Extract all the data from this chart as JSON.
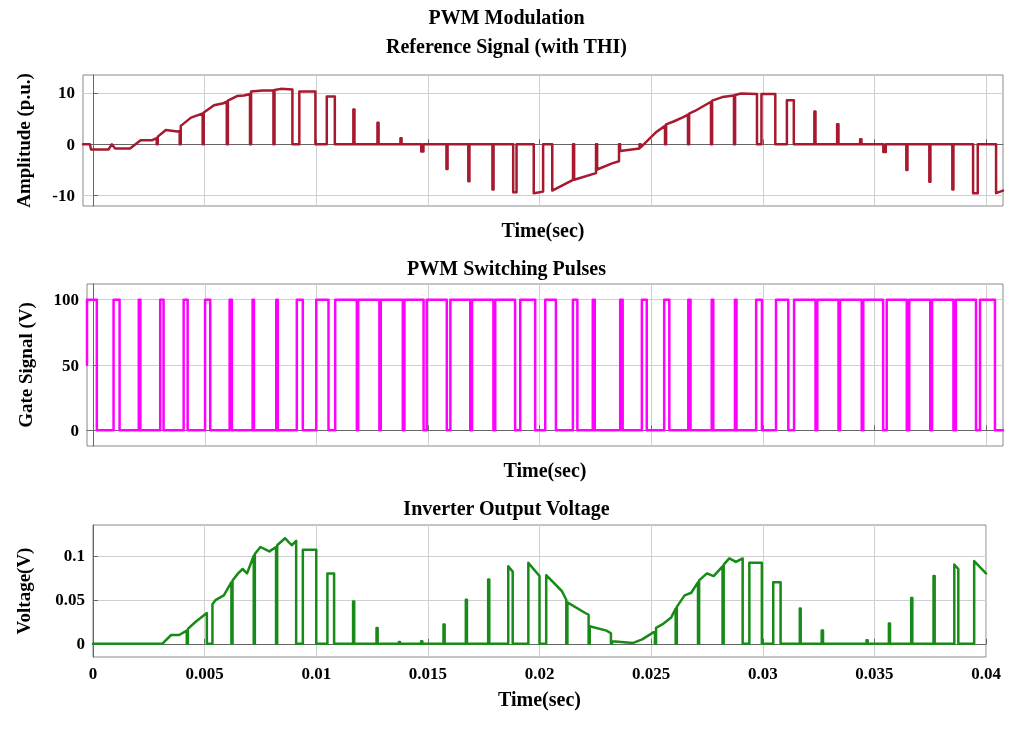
{
  "chart_data": [
    {
      "type": "line",
      "title": "PWM Modulation",
      "subtitle": "Reference Signal (with THI)",
      "xlabel": "Time(sec)",
      "ylabel": "Amplitude (p.u.)",
      "color": "#a6192e",
      "marker": "none",
      "grid": true,
      "tick_labels": "y",
      "xlim": [
        -0.00045,
        0.04076
      ],
      "xticks": [
        0,
        0.005,
        0.01,
        0.015,
        0.02,
        0.025,
        0.03,
        0.035,
        0.04
      ],
      "ylim": [
        -12,
        13.5
      ],
      "yticks": [
        -10,
        0,
        10
      ],
      "x": [
        -0.00045,
        -0.00014,
        -9e-05,
        0.00069,
        0.00084,
        0.00099,
        0.00166,
        0.00213,
        0.00264,
        0.00275,
        0.00285,
        0.00285,
        0.0029,
        0.0029,
        0.00326,
        0.00378,
        0.00388,
        0.00388,
        0.00393,
        0.00393,
        0.00439,
        0.0047,
        0.00491,
        0.00491,
        0.00496,
        0.00496,
        0.00542,
        0.00584,
        0.00599,
        0.00599,
        0.00604,
        0.00604,
        0.00645,
        0.00676,
        0.00703,
        0.00703,
        0.00708,
        0.00708,
        0.00759,
        0.00808,
        0.00808,
        0.00813,
        0.00813,
        0.00841,
        0.00893,
        0.00893,
        0.00924,
        0.00924,
        0.00996,
        0.00996,
        0.01047,
        0.01047,
        0.01083,
        0.01083,
        0.01166,
        0.01166,
        0.01171,
        0.01171,
        0.01274,
        0.01274,
        0.01279,
        0.01279,
        0.01377,
        0.01377,
        0.01382,
        0.01382,
        0.0147,
        0.0147,
        0.0148,
        0.0148,
        0.01583,
        0.01583,
        0.01588,
        0.01588,
        0.01681,
        0.01681,
        0.01686,
        0.01686,
        0.01789,
        0.01789,
        0.01794,
        0.01794,
        0.01882,
        0.01882,
        0.01897,
        0.01897,
        0.01974,
        0.01974,
        0.02016,
        0.02016,
        0.02057,
        0.02057,
        0.0215,
        0.0215,
        0.02155,
        0.02155,
        0.02253,
        0.02253,
        0.02258,
        0.02258,
        0.02325,
        0.02356,
        0.02356,
        0.02361,
        0.02361,
        0.02448,
        0.02448,
        0.02453,
        0.02453,
        0.0252,
        0.02562,
        0.02562,
        0.02567,
        0.02567,
        0.02603,
        0.02644,
        0.02665,
        0.02665,
        0.0267,
        0.0267,
        0.02696,
        0.02768,
        0.02768,
        0.02773,
        0.02773,
        0.02819,
        0.02871,
        0.02871,
        0.02876,
        0.02876,
        0.02902,
        0.02974,
        0.02974,
        0.02994,
        0.02994,
        0.03056,
        0.03056,
        0.03108,
        0.03108,
        0.03139,
        0.03139,
        0.03231,
        0.03231,
        0.03236,
        0.03236,
        0.03333,
        0.03333,
        0.03339,
        0.03339,
        0.03436,
        0.03436,
        0.03442,
        0.03442,
        0.0354,
        0.0354,
        0.03551,
        0.03551,
        0.03643,
        0.03643,
        0.03648,
        0.03648,
        0.03746,
        0.03746,
        0.03751,
        0.03751,
        0.03849,
        0.03849,
        0.03854,
        0.03854,
        0.03942,
        0.03942,
        0.03963,
        0.03963,
        0.04045,
        0.04045,
        0.04076
      ],
      "values": [
        0,
        0,
        -1,
        -1,
        0,
        -0.8,
        -0.8,
        0.8,
        0.8,
        1,
        1.2,
        0,
        0,
        1.5,
        2.8,
        2.5,
        2.6,
        0,
        0,
        3.6,
        5.2,
        5.7,
        6,
        0,
        0,
        6.2,
        7.6,
        8,
        8.3,
        0,
        0,
        8.5,
        9.4,
        9.5,
        9.8,
        0,
        0,
        10.3,
        10.5,
        10.5,
        0,
        0,
        10.6,
        10.8,
        10.7,
        0,
        0,
        10.3,
        10.3,
        0,
        0,
        9.3,
        9.3,
        0,
        0,
        6.8,
        6.8,
        0,
        0,
        4.2,
        4.2,
        0,
        0,
        1.2,
        1.2,
        0,
        0,
        -1.4,
        -1.4,
        0,
        0,
        -4.8,
        -4.8,
        0,
        0,
        -7.2,
        -7.2,
        0,
        0,
        -8.8,
        -8.8,
        0,
        0,
        -9.3,
        -9.3,
        0,
        0,
        -9.5,
        -9.2,
        0,
        0,
        -9,
        -6.9,
        0,
        0,
        -6.9,
        -5.6,
        0,
        0,
        -4.9,
        -3.7,
        -3.3,
        0,
        0,
        -1.3,
        -0.8,
        0,
        0,
        -0.6,
        2.3,
        3.6,
        0,
        0,
        3.9,
        4.5,
        5.3,
        5.8,
        0,
        0,
        6,
        6.5,
        8.3,
        0,
        0,
        8.5,
        9.2,
        9.5,
        0,
        0,
        9.6,
        9.9,
        9.8,
        0,
        0,
        9.8,
        9.8,
        0,
        0,
        8.6,
        8.6,
        0,
        0,
        6.4,
        6.4,
        0,
        0,
        3.9,
        3.9,
        0,
        0,
        1,
        1,
        0,
        0,
        -1.5,
        -1.5,
        0,
        0,
        -5,
        -5,
        0,
        0,
        -7.3,
        -7.3,
        0,
        0,
        -8.8,
        -8.8,
        0,
        0,
        -9.5,
        -9.5,
        0,
        0,
        -9.5,
        -9
      ]
    },
    {
      "type": "line",
      "title": "PWM Switching Pulses",
      "xlabel": "Time(sec)",
      "ylabel": "Gate Signal (V)",
      "color": "#ff00ff",
      "marker": "none",
      "grid": true,
      "tick_labels": "y",
      "xlim": [
        -0.00028,
        0.04076
      ],
      "xticks": [
        0,
        0.005,
        0.01,
        0.015,
        0.02,
        0.025,
        0.03,
        0.035,
        0.04
      ],
      "ylim": [
        -12,
        112
      ],
      "yticks": [
        0,
        50,
        100
      ],
      "x": [
        -0.00028,
        -0.00028,
        0.00016,
        0.00016,
        0.00091,
        0.00091,
        0.00118,
        0.00118,
        0.00204,
        0.00204,
        0.00211,
        0.00211,
        0.003,
        0.003,
        0.00315,
        0.00315,
        0.00405,
        0.00405,
        0.00423,
        0.00423,
        0.00501,
        0.00501,
        0.00524,
        0.00524,
        0.00611,
        0.00611,
        0.00621,
        0.00621,
        0.00714,
        0.00714,
        0.0072,
        0.0072,
        0.0082,
        0.0082,
        0.00827,
        0.00827,
        0.00912,
        0.00912,
        0.00939,
        0.00939,
        0.00999,
        0.00999,
        0.01054,
        0.01054,
        0.01084,
        0.01084,
        0.01181,
        0.01181,
        0.01187,
        0.01187,
        0.01282,
        0.01282,
        0.01288,
        0.01288,
        0.01387,
        0.01387,
        0.01394,
        0.01394,
        0.0148,
        0.0148,
        0.01494,
        0.01494,
        0.01584,
        0.01584,
        0.016,
        0.016,
        0.01689,
        0.01689,
        0.01697,
        0.01697,
        0.01793,
        0.01793,
        0.01801,
        0.01801,
        0.0189,
        0.0189,
        0.01913,
        0.01913,
        0.0198,
        0.0198,
        0.02025,
        0.02025,
        0.02073,
        0.02073,
        0.02149,
        0.02149,
        0.02169,
        0.02169,
        0.02238,
        0.02238,
        0.02247,
        0.02247,
        0.02361,
        0.02361,
        0.02372,
        0.02372,
        0.02458,
        0.02458,
        0.0248,
        0.0248,
        0.02558,
        0.02558,
        0.02581,
        0.02581,
        0.02666,
        0.02666,
        0.02676,
        0.02676,
        0.02771,
        0.02771,
        0.02778,
        0.02778,
        0.02875,
        0.02875,
        0.02882,
        0.02882,
        0.0297,
        0.0297,
        0.02996,
        0.02996,
        0.03059,
        0.03059,
        0.03114,
        0.03114,
        0.0314,
        0.0314,
        0.03236,
        0.03236,
        0.03244,
        0.03244,
        0.03339,
        0.03339,
        0.03346,
        0.03346,
        0.03443,
        0.03443,
        0.0345,
        0.0345,
        0.03539,
        0.03539,
        0.03555,
        0.03555,
        0.03645,
        0.03645,
        0.03656,
        0.03656,
        0.0375,
        0.0375,
        0.03758,
        0.03758,
        0.03854,
        0.03854,
        0.03865,
        0.03865,
        0.03955,
        0.03955,
        0.03973,
        0.03973,
        0.0404,
        0.0404,
        0.04076
      ],
      "values": [
        50,
        100,
        100,
        0,
        0,
        100,
        100,
        0,
        0,
        100,
        100,
        0,
        0,
        100,
        100,
        0,
        0,
        100,
        100,
        0,
        0,
        100,
        100,
        0,
        0,
        100,
        100,
        0,
        0,
        100,
        100,
        0,
        0,
        100,
        100,
        0,
        0,
        100,
        100,
        0,
        0,
        100,
        100,
        0,
        0,
        100,
        100,
        0,
        0,
        100,
        100,
        0,
        0,
        100,
        100,
        0,
        0,
        100,
        100,
        0,
        0,
        100,
        100,
        0,
        0,
        100,
        100,
        0,
        0,
        100,
        100,
        0,
        0,
        100,
        100,
        0,
        0,
        100,
        100,
        0,
        0,
        100,
        100,
        0,
        0,
        100,
        100,
        0,
        0,
        100,
        100,
        0,
        0,
        100,
        100,
        0,
        0,
        100,
        100,
        0,
        0,
        100,
        100,
        0,
        0,
        100,
        100,
        0,
        0,
        100,
        100,
        0,
        0,
        100,
        100,
        0,
        0,
        100,
        100,
        0,
        0,
        100,
        100,
        0,
        0,
        100,
        100,
        0,
        0,
        100,
        100,
        0,
        0,
        100,
        100,
        0,
        0,
        100,
        100,
        0,
        0,
        100,
        100,
        0,
        0,
        100,
        100,
        0,
        0,
        100,
        100,
        0,
        0,
        100,
        100,
        0,
        0,
        100,
        100,
        0,
        0
      ]
    },
    {
      "type": "line",
      "title": "Inverter Output Voltage",
      "xlabel": "Time(sec)",
      "ylabel": "Voltage(V)",
      "color": "#178a17",
      "marker": "none",
      "grid": true,
      "xlim": [
        0,
        0.04
      ],
      "xticks": [
        0,
        0.005,
        0.01,
        0.015,
        0.02,
        0.025,
        0.03,
        0.035,
        0.04
      ],
      "ylim": [
        -0.015,
        0.135
      ],
      "yticks": [
        0,
        0.05,
        0.1
      ],
      "x": [
        0,
        0.0031,
        0.0035,
        0.00386,
        0.0042,
        0.0042,
        0.00425,
        0.00425,
        0.0046,
        0.0051,
        0.0051,
        0.00535,
        0.00535,
        0.0055,
        0.00586,
        0.0062,
        0.0062,
        0.00625,
        0.00625,
        0.0065,
        0.0067,
        0.0069,
        0.0072,
        0.0072,
        0.00725,
        0.00725,
        0.0075,
        0.0079,
        0.0082,
        0.0082,
        0.00825,
        0.00825,
        0.0086,
        0.0089,
        0.0091,
        0.0091,
        0.0094,
        0.0094,
        0.01,
        0.01,
        0.0105,
        0.0105,
        0.0108,
        0.0108,
        0.01165,
        0.01165,
        0.0117,
        0.0117,
        0.0127,
        0.0127,
        0.01275,
        0.01275,
        0.0137,
        0.0137,
        0.01375,
        0.01375,
        0.0147,
        0.0147,
        0.01475,
        0.01475,
        0.0157,
        0.0157,
        0.01575,
        0.01575,
        0.0167,
        0.0167,
        0.01675,
        0.01675,
        0.0177,
        0.0177,
        0.01775,
        0.01775,
        0.0186,
        0.0186,
        0.0188,
        0.0188,
        0.0195,
        0.0195,
        0.02,
        0.02,
        0.0203,
        0.0203,
        0.021,
        0.0212,
        0.0212,
        0.02125,
        0.02125,
        0.02205,
        0.0222,
        0.0222,
        0.02225,
        0.02225,
        0.023,
        0.0232,
        0.0232,
        0.02325,
        0.02325,
        0.0242,
        0.0246,
        0.0251,
        0.02517,
        0.02517,
        0.02522,
        0.02522,
        0.0255,
        0.0259,
        0.0261,
        0.0261,
        0.02615,
        0.02615,
        0.0265,
        0.0268,
        0.0271,
        0.0271,
        0.02715,
        0.02715,
        0.0275,
        0.0278,
        0.0282,
        0.0282,
        0.02825,
        0.02825,
        0.0285,
        0.0288,
        0.0291,
        0.0291,
        0.0294,
        0.0294,
        0.02996,
        0.02996,
        0.03047,
        0.03047,
        0.0308,
        0.0308,
        0.03166,
        0.03166,
        0.0317,
        0.0317,
        0.03264,
        0.03264,
        0.0327,
        0.0327,
        0.03465,
        0.03465,
        0.0347,
        0.0347,
        0.03565,
        0.03565,
        0.0357,
        0.0357,
        0.03665,
        0.03665,
        0.0367,
        0.0367,
        0.03765,
        0.03765,
        0.0377,
        0.0377,
        0.03858,
        0.03858,
        0.03876,
        0.03876,
        0.03947,
        0.03947,
        0.04
      ],
      "values": [
        0,
        0,
        0.01,
        0.01,
        0.015,
        0,
        0,
        0.017,
        0.025,
        0.035,
        0,
        0,
        0.045,
        0.05,
        0.055,
        0.07,
        0,
        0,
        0.072,
        0.08,
        0.085,
        0.08,
        0.1,
        0,
        0,
        0.102,
        0.11,
        0.105,
        0.11,
        0,
        0,
        0.112,
        0.12,
        0.112,
        0.117,
        0,
        0,
        0.107,
        0.107,
        0,
        0,
        0.08,
        0.08,
        0,
        0,
        0.048,
        0.048,
        0,
        0,
        0.018,
        0.018,
        0,
        0,
        0.002,
        0.002,
        0,
        0,
        0.003,
        0.003,
        0,
        0,
        0.022,
        0.022,
        0,
        0,
        0.05,
        0.05,
        0,
        0,
        0.073,
        0.073,
        0,
        0,
        0.088,
        0.082,
        0,
        0,
        0.092,
        0.077,
        0,
        0,
        0.078,
        0.06,
        0.05,
        0,
        0,
        0.047,
        0.035,
        0.033,
        0,
        0,
        0.02,
        0.015,
        0.012,
        0,
        0,
        0.003,
        0.001,
        0.005,
        0.013,
        0.013,
        0,
        0,
        0.018,
        0.022,
        0.03,
        0.04,
        0,
        0,
        0.042,
        0.055,
        0.058,
        0.07,
        0,
        0,
        0.072,
        0.08,
        0.077,
        0.088,
        0,
        0,
        0.09,
        0.097,
        0.093,
        0.097,
        0,
        0,
        0.092,
        0.092,
        0,
        0,
        0.07,
        0.07,
        0,
        0,
        0.04,
        0.04,
        0,
        0,
        0.015,
        0.015,
        0,
        0,
        0.004,
        0.004,
        0,
        0,
        0.023,
        0.023,
        0,
        0,
        0.052,
        0.052,
        0,
        0,
        0.077,
        0.077,
        0,
        0,
        0.09,
        0.085,
        0,
        0,
        0.094,
        0.08
      ]
    }
  ]
}
